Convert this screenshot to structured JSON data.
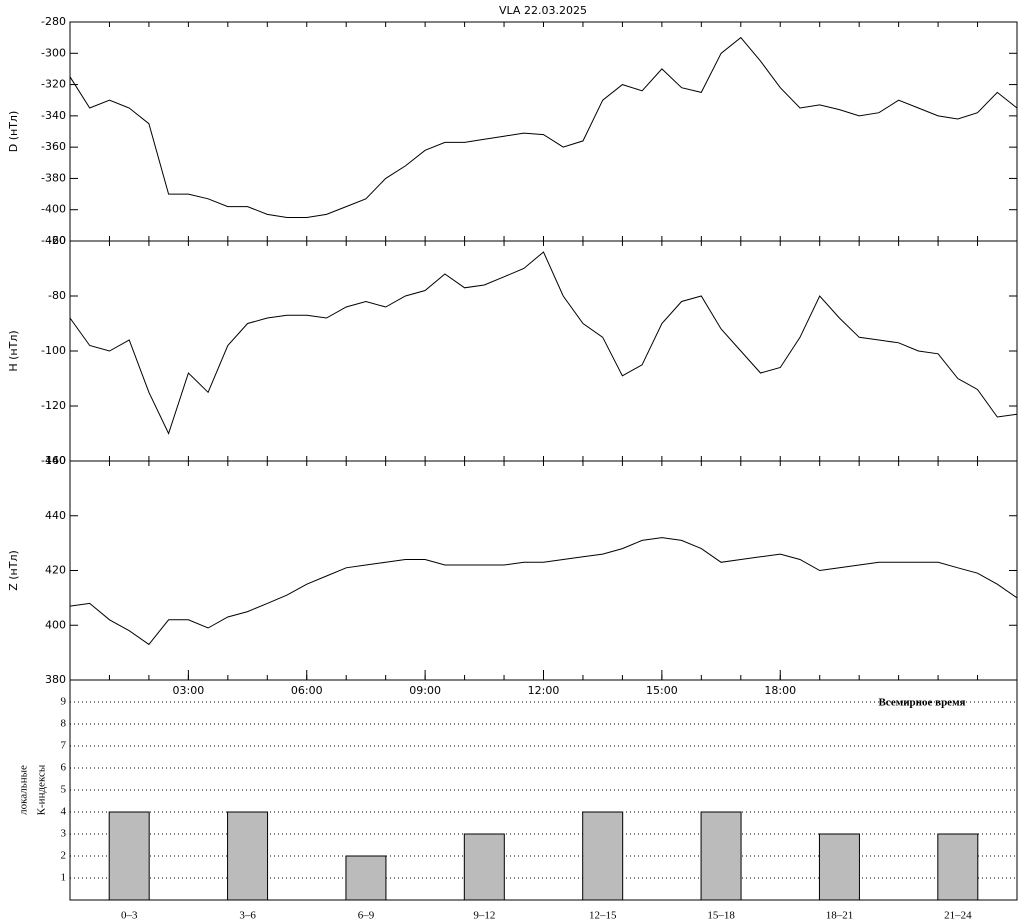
{
  "title": "VLA   22.03.2025",
  "chart_data": [
    {
      "type": "line",
      "ylabel": "D (нТл)",
      "color": "#000000",
      "x": [
        0,
        0.5,
        1,
        1.5,
        2,
        2.5,
        3,
        3.5,
        4,
        4.5,
        5,
        5.5,
        6,
        6.5,
        7,
        7.5,
        8,
        8.5,
        9,
        9.5,
        10,
        10.5,
        11,
        11.5,
        12,
        12.5,
        13,
        13.5,
        14,
        14.5,
        15,
        15.5,
        16,
        16.5,
        17,
        17.5,
        18,
        18.5,
        19,
        19.5,
        20,
        20.5,
        21,
        21.5,
        22,
        22.5,
        23,
        23.5,
        24
      ],
      "values": [
        -315,
        -335,
        -330,
        -335,
        -345,
        -390,
        -390,
        -393,
        -398,
        -398,
        -403,
        -405,
        -405,
        -403,
        -398,
        -393,
        -380,
        -372,
        -362,
        -357,
        -357,
        -355,
        -353,
        -351,
        -352,
        -360,
        -356,
        -330,
        -320,
        -324,
        -310,
        -322,
        -325,
        -300,
        -290,
        -305,
        -322,
        -335,
        -333,
        -336,
        -340,
        -338,
        -330,
        -335,
        -340,
        -342,
        -338,
        -325,
        -335
      ],
      "xlim": [
        0,
        24
      ],
      "ylim": [
        -420,
        -280
      ],
      "yticks": [
        -420,
        -400,
        -380,
        -360,
        -340,
        -320,
        -300,
        -280
      ]
    },
    {
      "type": "line",
      "ylabel": "H (нТл)",
      "color": "#000000",
      "x": [
        0,
        0.5,
        1,
        1.5,
        2,
        2.5,
        3,
        3.5,
        4,
        4.5,
        5,
        5.5,
        6,
        6.5,
        7,
        7.5,
        8,
        8.5,
        9,
        9.5,
        10,
        10.5,
        11,
        11.5,
        12,
        12.5,
        13,
        13.5,
        14,
        14.5,
        15,
        15.5,
        16,
        16.5,
        17,
        17.5,
        18,
        18.5,
        19,
        19.5,
        20,
        20.5,
        21,
        21.5,
        22,
        22.5,
        23,
        23.5,
        24
      ],
      "values": [
        -88,
        -98,
        -100,
        -96,
        -115,
        -130,
        -108,
        -115,
        -98,
        -90,
        -88,
        -87,
        -87,
        -88,
        -84,
        -82,
        -84,
        -80,
        -78,
        -72,
        -77,
        -76,
        -73,
        -70,
        -64,
        -80,
        -90,
        -95,
        -109,
        -105,
        -90,
        -82,
        -80,
        -92,
        -100,
        -108,
        -106,
        -95,
        -80,
        -88,
        -95,
        -96,
        -97,
        -100,
        -101,
        -110,
        -114,
        -124,
        -123
      ],
      "xlim": [
        0,
        24
      ],
      "ylim": [
        -140,
        -60
      ],
      "yticks": [
        -140,
        -120,
        -100,
        -80,
        -60
      ]
    },
    {
      "type": "line",
      "ylabel": "Z (нТл)",
      "color": "#000000",
      "x": [
        0,
        0.5,
        1,
        1.5,
        2,
        2.5,
        3,
        3.5,
        4,
        4.5,
        5,
        5.5,
        6,
        6.5,
        7,
        7.5,
        8,
        8.5,
        9,
        9.5,
        10,
        10.5,
        11,
        11.5,
        12,
        12.5,
        13,
        13.5,
        14,
        14.5,
        15,
        15.5,
        16,
        16.5,
        17,
        17.5,
        18,
        18.5,
        19,
        19.5,
        20,
        20.5,
        21,
        21.5,
        22,
        22.5,
        23,
        23.5,
        24
      ],
      "values": [
        407,
        408,
        402,
        398,
        393,
        402,
        402,
        399,
        403,
        405,
        408,
        411,
        415,
        418,
        421,
        422,
        423,
        424,
        424,
        422,
        422,
        422,
        422,
        423,
        423,
        424,
        425,
        426,
        428,
        431,
        432,
        431,
        428,
        423,
        424,
        425,
        426,
        424,
        420,
        421,
        422,
        423,
        423,
        423,
        423,
        421,
        419,
        415,
        410
      ],
      "xlim": [
        0,
        24
      ],
      "ylim": [
        380,
        460
      ],
      "yticks": [
        380,
        400,
        420,
        440,
        460
      ],
      "xticks": [
        {
          "value": 3,
          "label": "03:00"
        },
        {
          "value": 6,
          "label": "06:00"
        },
        {
          "value": 9,
          "label": "09:00"
        },
        {
          "value": 12,
          "label": "12:00"
        },
        {
          "value": 15,
          "label": "15:00"
        },
        {
          "value": 18,
          "label": "18:00"
        }
      ]
    },
    {
      "type": "bar",
      "xlabel": "Всемирное время",
      "ylabel": [
        "локальные",
        "К-индексы"
      ],
      "color": "#bbbbbb",
      "categories": [
        "0–3",
        "3–6",
        "6–9",
        "9–12",
        "12–15",
        "15–18",
        "18–21",
        "21–24"
      ],
      "values": [
        4,
        4,
        2,
        3,
        4,
        4,
        3,
        3
      ],
      "ylim": [
        0,
        10
      ],
      "yticks": [
        1,
        2,
        3,
        4,
        5,
        6,
        7,
        8,
        9
      ],
      "grid": true
    }
  ]
}
